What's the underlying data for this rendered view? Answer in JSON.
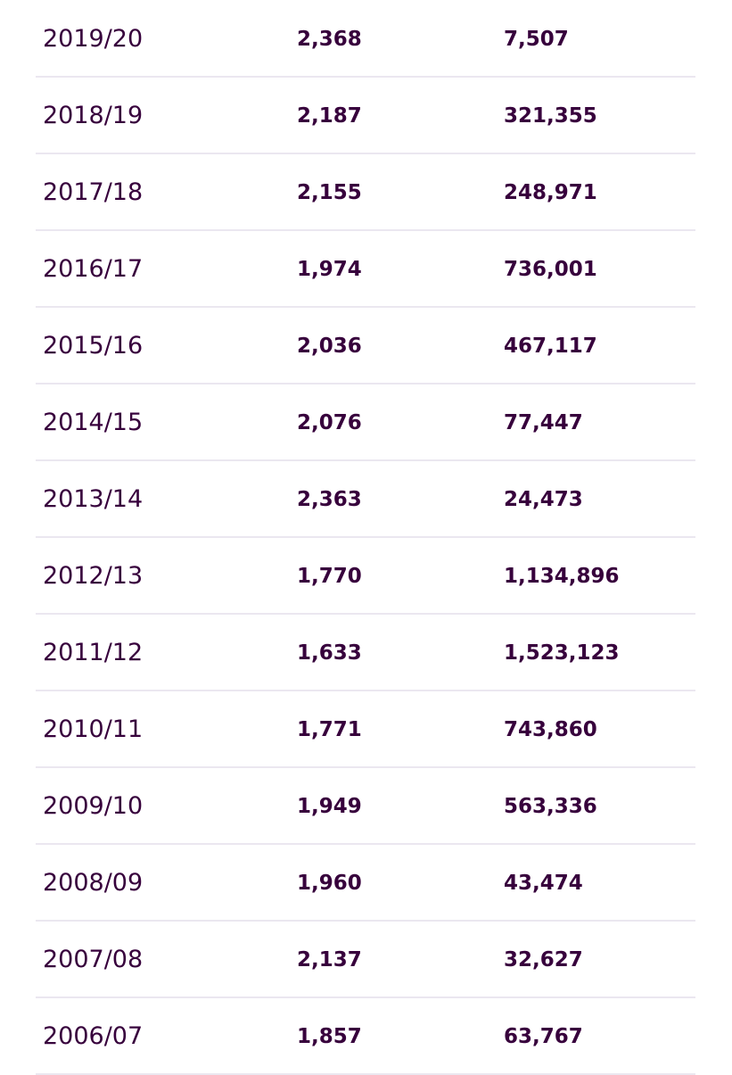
{
  "table": {
    "rows": [
      [
        "2019/20",
        "2,368",
        "7,507"
      ],
      [
        "2018/19",
        "2,187",
        "321,355"
      ],
      [
        "2017/18",
        "2,155",
        "248,971"
      ],
      [
        "2016/17",
        "1,974",
        "736,001"
      ],
      [
        "2015/16",
        "2,036",
        "467,117"
      ],
      [
        "2014/15",
        "2,076",
        "77,447"
      ],
      [
        "2013/14",
        "2,363",
        "24,473"
      ],
      [
        "2012/13",
        "1,770",
        "1,134,896"
      ],
      [
        "2011/12",
        "1,633",
        "1,523,123"
      ],
      [
        "2010/11",
        "1,771",
        "743,860"
      ],
      [
        "2009/10",
        "1,949",
        "563,336"
      ],
      [
        "2008/09",
        "1,960",
        "43,474"
      ],
      [
        "2007/08",
        "2,137",
        "32,627"
      ],
      [
        "2006/07",
        "1,857",
        "63,767"
      ]
    ]
  }
}
